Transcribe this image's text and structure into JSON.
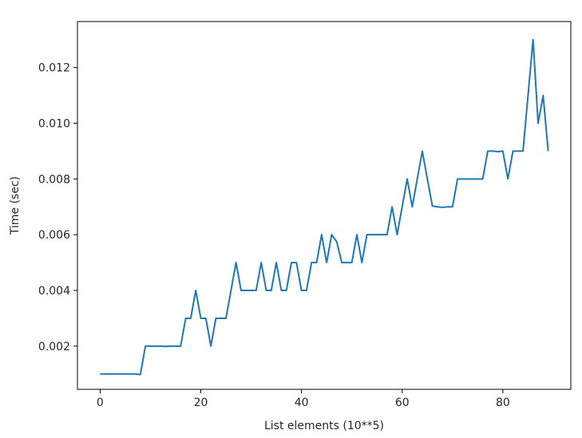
{
  "chart_data": {
    "type": "line",
    "xlabel": "List elements (10**5)",
    "ylabel": "Time (sec)",
    "xlim": [
      -4.5,
      93.5
    ],
    "ylim": [
      0.00045,
      0.01365
    ],
    "xticks": [
      0,
      20,
      40,
      60,
      80
    ],
    "xtick_labels": [
      "0",
      "20",
      "40",
      "60",
      "80"
    ],
    "yticks": [
      0.002,
      0.004,
      0.006,
      0.008,
      0.01,
      0.012
    ],
    "ytick_labels": [
      "0.002",
      "0.004",
      "0.006",
      "0.008",
      "0.010",
      "0.012"
    ],
    "grid": false,
    "line_color": "#1f77b4",
    "series": [
      {
        "x": [
          0,
          1,
          2,
          3,
          4,
          5,
          6,
          7,
          8,
          9,
          10,
          11,
          12,
          13,
          14,
          15,
          16,
          17,
          18,
          19,
          20,
          21,
          22,
          23,
          24,
          25,
          26,
          27,
          28,
          29,
          30,
          31,
          32,
          33,
          34,
          35,
          36,
          37,
          38,
          39,
          40,
          41,
          42,
          43,
          44,
          45,
          46,
          47,
          48,
          49,
          50,
          51,
          52,
          53,
          54,
          55,
          56,
          57,
          58,
          59,
          60,
          61,
          62,
          63,
          64,
          65,
          66,
          67,
          68,
          69,
          70,
          71,
          72,
          73,
          74,
          75,
          76,
          77,
          78,
          79,
          80,
          81,
          82,
          83,
          84,
          85,
          86,
          87,
          88,
          89
        ],
        "y": [
          0.001,
          0.001,
          0.001,
          0.001,
          0.001,
          0.001,
          0.001,
          0.001,
          0.00098,
          0.002,
          0.002,
          0.002,
          0.002,
          0.00199,
          0.002,
          0.002,
          0.002,
          0.003,
          0.003,
          0.004,
          0.003,
          0.003,
          0.002,
          0.003,
          0.003,
          0.003,
          0.004,
          0.005,
          0.004,
          0.004,
          0.004,
          0.004,
          0.005,
          0.004,
          0.004,
          0.005,
          0.004,
          0.004,
          0.005,
          0.005,
          0.004,
          0.004,
          0.005,
          0.005,
          0.006,
          0.005,
          0.006,
          0.00575,
          0.005,
          0.005,
          0.005,
          0.006,
          0.005,
          0.006,
          0.006,
          0.006,
          0.006,
          0.006,
          0.007,
          0.006,
          0.007,
          0.008,
          0.007,
          0.008,
          0.009,
          0.008,
          0.00703,
          0.007,
          0.00698,
          0.007,
          0.007,
          0.008,
          0.008,
          0.008,
          0.008,
          0.008,
          0.008,
          0.009,
          0.009,
          0.00898,
          0.009,
          0.008,
          0.009,
          0.009,
          0.009,
          0.011,
          0.013,
          0.01,
          0.011,
          0.009
        ]
      }
    ]
  }
}
